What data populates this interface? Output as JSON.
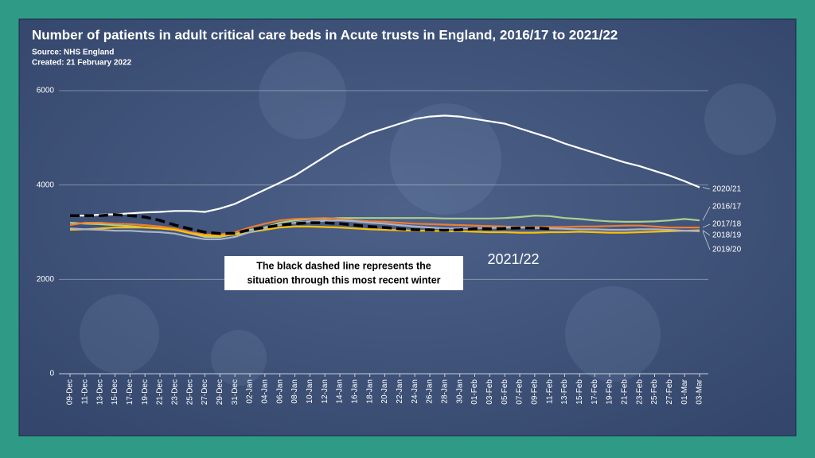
{
  "chart_data": {
    "type": "line",
    "title": "Number of patients in adult critical care beds in Acute trusts in England, 2016/17 to 2021/22",
    "source": "Source:  NHS England",
    "created": "Created: 21 February 2022",
    "annotation": [
      "The black dashed line represents the",
      "situation through this most recent winter"
    ],
    "categories": [
      "09-Dec",
      "11-Dec",
      "13-Dec",
      "15-Dec",
      "17-Dec",
      "19-Dec",
      "21-Dec",
      "23-Dec",
      "25-Dec",
      "27-Dec",
      "29-Dec",
      "31-Dec",
      "02-Jan",
      "04-Jan",
      "06-Jan",
      "08-Jan",
      "10-Jan",
      "12-Jan",
      "14-Jan",
      "16-Jan",
      "18-Jan",
      "20-Jan",
      "22-Jan",
      "24-Jan",
      "26-Jan",
      "28-Jan",
      "30-Jan",
      "01-Feb",
      "03-Feb",
      "05-Feb",
      "07-Feb",
      "09-Feb",
      "11-Feb",
      "13-Feb",
      "15-Feb",
      "17-Feb",
      "19-Feb",
      "21-Feb",
      "23-Feb",
      "25-Feb",
      "27-Feb",
      "01-Mar",
      "03-Mar"
    ],
    "ylim": [
      0,
      6000
    ],
    "yticks": [
      0,
      2000,
      4000,
      6000
    ],
    "grid": true,
    "series": [
      {
        "name": "2016/17",
        "color": "#a9d18e",
        "values": [
          3200,
          3180,
          3170,
          3150,
          3130,
          3100,
          3080,
          3050,
          2980,
          2900,
          2900,
          2960,
          3050,
          3100,
          3200,
          3250,
          3280,
          3280,
          3300,
          3300,
          3300,
          3300,
          3300,
          3300,
          3300,
          3290,
          3290,
          3290,
          3290,
          3300,
          3320,
          3350,
          3340,
          3300,
          3280,
          3250,
          3230,
          3220,
          3220,
          3230,
          3250,
          3280,
          3250
        ]
      },
      {
        "name": "2017/18",
        "color": "#ed7d31",
        "values": [
          3150,
          3200,
          3200,
          3180,
          3170,
          3150,
          3120,
          3080,
          3000,
          2950,
          2950,
          3000,
          3100,
          3180,
          3250,
          3280,
          3290,
          3300,
          3280,
          3250,
          3230,
          3220,
          3200,
          3180,
          3170,
          3160,
          3150,
          3140,
          3130,
          3120,
          3110,
          3110,
          3110,
          3110,
          3120,
          3120,
          3130,
          3140,
          3140,
          3120,
          3100,
          3100,
          3100
        ]
      },
      {
        "name": "2018/19",
        "color": "#ffc000",
        "values": [
          3050,
          3060,
          3080,
          3100,
          3100,
          3100,
          3080,
          3050,
          2980,
          2930,
          2920,
          2950,
          3000,
          3050,
          3100,
          3120,
          3120,
          3110,
          3100,
          3080,
          3060,
          3050,
          3040,
          3030,
          3030,
          3020,
          3020,
          3010,
          3000,
          3000,
          2990,
          2990,
          3000,
          3000,
          3010,
          3000,
          2990,
          2990,
          3000,
          3010,
          3020,
          3030,
          3040
        ]
      },
      {
        "name": "2019/20",
        "color": "#a9b3cc",
        "values": [
          3080,
          3060,
          3050,
          3030,
          3030,
          3010,
          3000,
          2970,
          2900,
          2850,
          2850,
          2900,
          3000,
          3080,
          3150,
          3200,
          3230,
          3240,
          3250,
          3230,
          3200,
          3180,
          3150,
          3120,
          3100,
          3080,
          3080,
          3090,
          3090,
          3100,
          3100,
          3090,
          3080,
          3070,
          3060,
          3060,
          3050,
          3050,
          3060,
          3060,
          3050,
          3030,
          3020
        ]
      },
      {
        "name": "2020/21",
        "color": "#ffffff",
        "values": [
          3350,
          3350,
          3370,
          3380,
          3400,
          3420,
          3430,
          3450,
          3450,
          3430,
          3500,
          3600,
          3750,
          3900,
          4050,
          4200,
          4400,
          4600,
          4800,
          4950,
          5100,
          5200,
          5300,
          5400,
          5450,
          5470,
          5450,
          5400,
          5350,
          5300,
          5200,
          5100,
          5000,
          4880,
          4780,
          4680,
          4580,
          4480,
          4400,
          4300,
          4200,
          4080,
          3950
        ]
      },
      {
        "name": "2021/22",
        "color": "#000000",
        "dashed": true,
        "values": [
          3350,
          3350,
          3350,
          3370,
          3350,
          3320,
          3250,
          3150,
          3070,
          3000,
          2970,
          2980,
          3050,
          3100,
          3150,
          3180,
          3200,
          3200,
          3180,
          3150,
          3120,
          3100,
          3070,
          3050,
          3050,
          3040,
          3050,
          3070,
          3070,
          3080,
          3090,
          3090,
          3070,
          null,
          null,
          null,
          null,
          null,
          null,
          null,
          null,
          null,
          null
        ]
      }
    ]
  }
}
